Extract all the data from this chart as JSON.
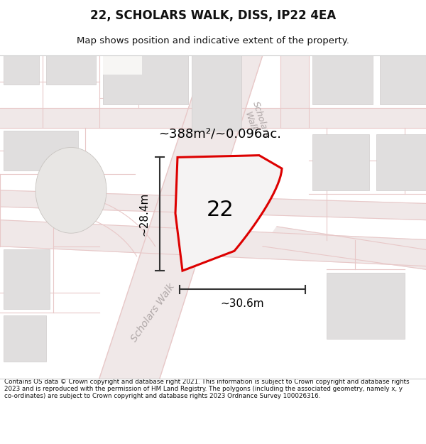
{
  "title": "22, SCHOLARS WALK, DISS, IP22 4EA",
  "subtitle": "Map shows position and indicative extent of the property.",
  "footer": "Contains OS data © Crown copyright and database right 2021. This information is subject to Crown copyright and database rights 2023 and is reproduced with the permission of HM Land Registry. The polygons (including the associated geometry, namely x, y co-ordinates) are subject to Crown copyright and database rights 2023 Ordnance Survey 100026316.",
  "area_label": "~388m²/~0.096ac.",
  "number_label": "22",
  "width_label": "~30.6m",
  "height_label": "~28.4m",
  "map_bg": "#f7f6f4",
  "road_color_light": "#f0e8e8",
  "road_line_color": "#e8c8c8",
  "building_color": "#e0dede",
  "building_edge": "#d0cccc",
  "red_outline": "#dd0000",
  "property_fill": "#f5f3f3",
  "white": "#ffffff",
  "dim_line_color": "#333333"
}
